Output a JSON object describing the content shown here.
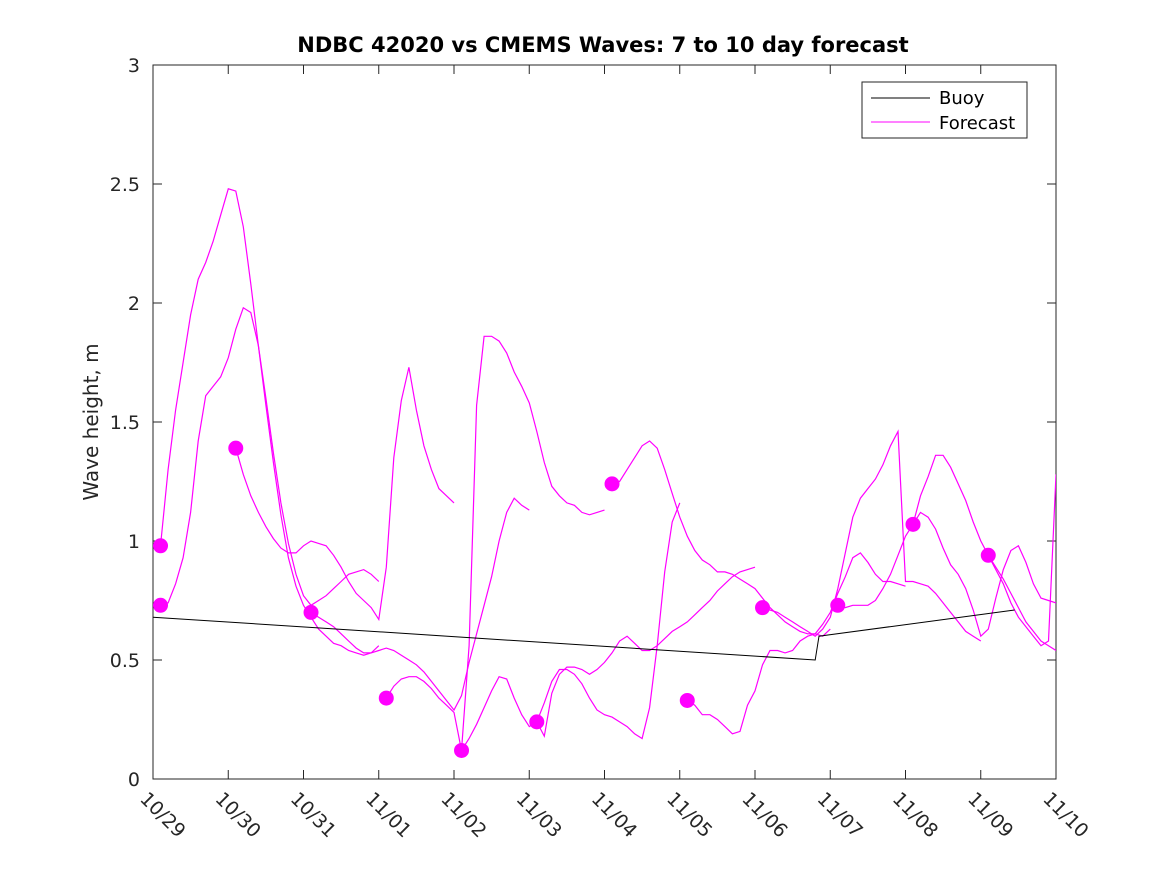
{
  "chart_data": {
    "type": "line",
    "title": "NDBC 42020 vs CMEMS Waves: 7 to 10 day forecast",
    "xlabel": "",
    "ylabel": "Wave height, m",
    "x_unit": "days since 10/29",
    "xlim": [
      0,
      12
    ],
    "ylim": [
      0,
      3
    ],
    "yticks": [
      0,
      0.5,
      1,
      1.5,
      2,
      2.5,
      3
    ],
    "ytick_labels": [
      "0",
      "0.5",
      "1",
      "1.5",
      "2",
      "2.5",
      "3"
    ],
    "xtick_labels": [
      "10/29",
      "10/30",
      "10/31",
      "11/01",
      "11/02",
      "11/03",
      "11/04",
      "11/05",
      "11/06",
      "11/07",
      "11/08",
      "11/09",
      "11/10"
    ],
    "grid": false,
    "legend": {
      "position": "top-right",
      "entries": [
        "Buoy",
        "Forecast"
      ]
    },
    "colors": {
      "buoy": "#000000",
      "forecast": "#ff00ff"
    },
    "series": [
      {
        "name": "Buoy",
        "color": "#000000",
        "x": [
          0,
          8.8,
          8.85,
          11.45
        ],
        "y": [
          0.68,
          0.5,
          0.6,
          0.71
        ]
      },
      {
        "name": "Forecast",
        "color": "#ff00ff",
        "segments": [
          {
            "x": [
              0.1,
              0.2,
              0.3,
              0.4,
              0.5,
              0.6,
              0.7,
              0.8,
              0.9,
              1.0,
              1.1,
              1.2,
              1.3,
              1.4,
              1.5,
              1.6,
              1.7,
              1.8,
              1.9,
              2.0,
              2.1,
              2.2,
              2.3,
              2.4,
              2.5,
              2.6,
              2.7,
              2.8,
              2.9,
              3.0
            ],
            "y": [
              0.98,
              1.3,
              1.55,
              1.75,
              1.95,
              2.1,
              2.17,
              2.26,
              2.37,
              2.48,
              2.47,
              2.32,
              2.08,
              1.82,
              1.57,
              1.33,
              1.11,
              0.93,
              0.81,
              0.73,
              0.68,
              0.63,
              0.6,
              0.57,
              0.56,
              0.54,
              0.53,
              0.52,
              0.53,
              0.56
            ]
          },
          {
            "x": [
              0.1,
              0.2,
              0.3,
              0.4,
              0.5,
              0.6,
              0.7,
              0.8,
              0.9,
              1.0,
              1.1,
              1.2,
              1.3,
              1.4,
              1.5,
              1.6,
              1.7,
              1.8,
              1.9,
              2.0,
              2.1,
              2.2,
              2.3,
              2.4,
              2.5,
              2.6,
              2.7,
              2.8,
              2.9,
              3.0
            ],
            "y": [
              0.73,
              0.74,
              0.82,
              0.93,
              1.12,
              1.42,
              1.61,
              1.65,
              1.69,
              1.77,
              1.89,
              1.98,
              1.96,
              1.82,
              1.6,
              1.37,
              1.16,
              0.99,
              0.86,
              0.77,
              0.73,
              0.75,
              0.77,
              0.8,
              0.83,
              0.86,
              0.87,
              0.88,
              0.86,
              0.83
            ]
          },
          {
            "x": [
              1.1,
              1.2,
              1.3,
              1.4,
              1.5,
              1.6,
              1.7,
              1.8,
              1.9,
              2.0,
              2.1,
              2.2,
              2.3,
              2.4,
              2.5,
              2.6,
              2.7,
              2.8,
              2.9,
              3.0,
              3.1,
              3.2,
              3.3,
              3.4,
              3.5,
              3.6,
              3.7,
              3.8,
              3.9,
              4.0
            ],
            "y": [
              1.39,
              1.28,
              1.19,
              1.12,
              1.06,
              1.01,
              0.97,
              0.95,
              0.95,
              0.98,
              1.0,
              0.99,
              0.98,
              0.94,
              0.89,
              0.83,
              0.78,
              0.75,
              0.72,
              0.67,
              0.89,
              1.35,
              1.59,
              1.73,
              1.55,
              1.4,
              1.3,
              1.22,
              1.19,
              1.16
            ]
          },
          {
            "x": [
              2.1,
              2.2,
              2.3,
              2.4,
              2.5,
              2.6,
              2.7,
              2.8,
              2.9,
              3.0,
              3.1,
              3.2,
              3.3,
              3.4,
              3.5,
              3.6,
              3.7,
              3.8,
              3.9,
              4.0,
              4.1,
              4.2,
              4.3,
              4.4,
              4.5,
              4.6,
              4.7,
              4.8,
              4.9,
              5.0
            ],
            "y": [
              0.7,
              0.68,
              0.66,
              0.64,
              0.61,
              0.58,
              0.55,
              0.53,
              0.53,
              0.54,
              0.55,
              0.54,
              0.52,
              0.5,
              0.48,
              0.45,
              0.41,
              0.37,
              0.33,
              0.29,
              0.35,
              0.49,
              0.61,
              0.73,
              0.85,
              1.0,
              1.12,
              1.18,
              1.15,
              1.13
            ]
          },
          {
            "x": [
              3.1,
              3.2,
              3.3,
              3.4,
              3.5,
              3.6,
              3.7,
              3.8,
              3.9,
              4.0,
              4.1,
              4.2,
              4.3,
              4.4,
              4.5,
              4.6,
              4.7,
              4.8,
              4.9,
              5.0,
              5.1,
              5.2,
              5.3,
              5.4,
              5.5,
              5.6,
              5.7,
              5.8,
              5.9,
              6.0
            ],
            "y": [
              0.34,
              0.39,
              0.42,
              0.43,
              0.43,
              0.41,
              0.38,
              0.34,
              0.31,
              0.28,
              0.12,
              0.56,
              1.57,
              1.86,
              1.86,
              1.84,
              1.79,
              1.71,
              1.65,
              1.58,
              1.46,
              1.33,
              1.23,
              1.19,
              1.16,
              1.15,
              1.12,
              1.11,
              1.12,
              1.13
            ]
          },
          {
            "x": [
              4.1,
              4.2,
              4.3,
              4.4,
              4.5,
              4.6,
              4.7,
              4.8,
              4.9,
              5.0,
              5.1,
              5.2,
              5.3,
              5.4,
              5.5,
              5.6,
              5.7,
              5.8,
              5.9,
              6.0,
              6.1,
              6.2,
              6.3,
              6.4,
              6.5,
              6.6,
              6.7,
              6.8,
              6.9,
              7.0
            ],
            "y": [
              0.12,
              0.17,
              0.23,
              0.3,
              0.37,
              0.43,
              0.42,
              0.34,
              0.27,
              0.22,
              0.24,
              0.32,
              0.41,
              0.46,
              0.46,
              0.44,
              0.4,
              0.34,
              0.29,
              0.27,
              0.26,
              0.24,
              0.22,
              0.19,
              0.17,
              0.3,
              0.56,
              0.87,
              1.08,
              1.16
            ]
          },
          {
            "x": [
              5.1,
              5.2,
              5.3,
              5.4,
              5.5,
              5.6,
              5.7,
              5.8,
              5.9,
              6.0,
              6.1,
              6.2,
              6.3,
              6.4,
              6.5,
              6.6,
              6.7,
              6.8,
              6.9,
              7.0,
              7.1,
              7.2,
              7.3,
              7.4,
              7.5,
              7.6,
              7.7,
              7.8,
              7.9,
              8.0
            ],
            "y": [
              0.24,
              0.18,
              0.36,
              0.44,
              0.47,
              0.47,
              0.46,
              0.44,
              0.46,
              0.49,
              0.53,
              0.58,
              0.6,
              0.57,
              0.54,
              0.54,
              0.56,
              0.59,
              0.62,
              0.64,
              0.66,
              0.69,
              0.72,
              0.75,
              0.79,
              0.82,
              0.85,
              0.87,
              0.88,
              0.89
            ]
          },
          {
            "x": [
              6.1,
              6.2,
              6.3,
              6.4,
              6.5,
              6.6,
              6.7,
              6.8,
              6.9,
              7.0,
              7.1,
              7.2,
              7.3,
              7.4,
              7.5,
              7.6,
              7.7,
              7.8,
              7.9,
              8.0,
              8.1,
              8.2,
              8.3,
              8.4,
              8.5,
              8.6,
              8.7,
              8.8,
              8.9,
              9.0
            ],
            "y": [
              1.24,
              1.25,
              1.3,
              1.35,
              1.4,
              1.42,
              1.39,
              1.3,
              1.2,
              1.1,
              1.02,
              0.96,
              0.92,
              0.9,
              0.87,
              0.87,
              0.86,
              0.84,
              0.82,
              0.8,
              0.76,
              0.72,
              0.69,
              0.66,
              0.64,
              0.62,
              0.61,
              0.61,
              0.6,
              0.63
            ]
          },
          {
            "x": [
              7.1,
              7.2,
              7.3,
              7.4,
              7.5,
              7.6,
              7.7,
              7.8,
              7.9,
              8.0,
              8.1,
              8.2,
              8.3,
              8.4,
              8.5,
              8.6,
              8.7,
              8.8,
              8.9,
              9.0,
              9.1,
              9.2,
              9.3,
              9.4,
              9.5,
              9.6,
              9.7,
              9.8,
              9.9,
              10.0
            ],
            "y": [
              0.33,
              0.31,
              0.27,
              0.27,
              0.25,
              0.22,
              0.19,
              0.2,
              0.31,
              0.37,
              0.48,
              0.54,
              0.54,
              0.53,
              0.54,
              0.58,
              0.6,
              0.61,
              0.65,
              0.7,
              0.78,
              0.85,
              0.93,
              0.95,
              0.91,
              0.86,
              0.83,
              0.83,
              0.82,
              0.81
            ]
          },
          {
            "x": [
              8.1,
              8.2,
              8.3,
              8.4,
              8.5,
              8.6,
              8.7,
              8.8,
              8.9,
              9.0,
              9.1,
              9.2,
              9.3,
              9.4,
              9.5,
              9.6,
              9.7,
              9.8,
              9.9,
              10.0,
              10.1,
              10.2,
              10.3,
              10.4,
              10.5,
              10.6,
              10.7,
              10.8,
              10.9,
              11.0
            ],
            "y": [
              0.72,
              0.71,
              0.7,
              0.68,
              0.66,
              0.64,
              0.62,
              0.6,
              0.63,
              0.68,
              0.8,
              0.95,
              1.1,
              1.18,
              1.22,
              1.26,
              1.32,
              1.4,
              1.46,
              0.83,
              0.83,
              0.82,
              0.81,
              0.78,
              0.74,
              0.7,
              0.66,
              0.62,
              0.6,
              0.58
            ]
          },
          {
            "x": [
              9.1,
              9.2,
              9.3,
              9.4,
              9.5,
              9.6,
              9.7,
              9.8,
              9.9,
              10.0,
              10.1,
              10.2,
              10.3,
              10.4,
              10.5,
              10.6,
              10.7,
              10.8,
              10.9,
              11.0,
              11.1,
              11.2,
              11.3,
              11.4,
              11.5,
              11.6,
              11.7,
              11.8,
              11.9,
              12.0
            ],
            "y": [
              0.73,
              0.72,
              0.73,
              0.73,
              0.73,
              0.75,
              0.8,
              0.86,
              0.94,
              1.02,
              1.07,
              1.12,
              1.1,
              1.05,
              0.97,
              0.9,
              0.86,
              0.8,
              0.71,
              0.6,
              0.63,
              0.76,
              0.88,
              0.96,
              0.98,
              0.91,
              0.82,
              0.76,
              0.75,
              0.74
            ]
          },
          {
            "x": [
              10.1,
              10.2,
              10.3,
              10.4,
              10.5,
              10.6,
              10.7,
              10.8,
              10.9,
              11.0,
              11.1,
              11.2,
              11.3,
              11.4,
              11.5,
              11.6,
              11.7,
              11.8,
              11.9,
              12.0
            ],
            "y": [
              1.07,
              1.19,
              1.27,
              1.36,
              1.36,
              1.31,
              1.24,
              1.17,
              1.08,
              1.0,
              0.94,
              0.89,
              0.84,
              0.78,
              0.72,
              0.66,
              0.62,
              0.58,
              0.56,
              0.54
            ]
          },
          {
            "x": [
              11.1,
              11.2,
              11.3,
              11.4,
              11.5,
              11.6,
              11.7,
              11.8,
              11.9,
              12.0
            ],
            "y": [
              0.94,
              0.88,
              0.82,
              0.74,
              0.68,
              0.64,
              0.6,
              0.56,
              0.58,
              1.28
            ]
          }
        ],
        "markers": {
          "x": [
            0.1,
            0.1,
            1.1,
            2.1,
            3.1,
            4.1,
            5.1,
            6.1,
            7.1,
            8.1,
            9.1,
            10.1,
            11.1
          ],
          "y": [
            0.98,
            0.73,
            1.39,
            0.7,
            0.34,
            0.12,
            0.24,
            1.24,
            0.33,
            0.72,
            0.73,
            1.07,
            0.94
          ]
        }
      }
    ]
  }
}
